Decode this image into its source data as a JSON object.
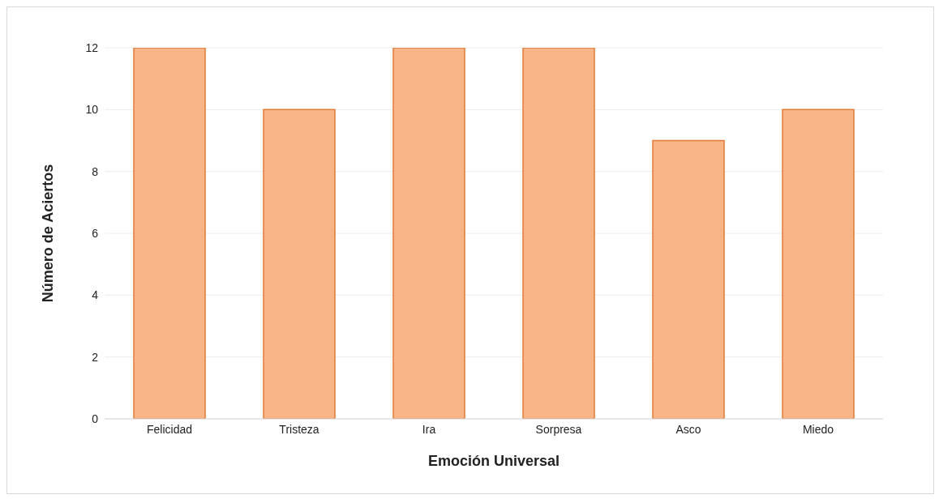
{
  "chart_data": {
    "type": "bar",
    "xlabel": "Emoción Universal",
    "ylabel": "Número de Aciertos",
    "categories": [
      "Felicidad",
      "Tristeza",
      "Ira",
      "Sorpresa",
      "Asco",
      "Miedo"
    ],
    "values": [
      12,
      10,
      12,
      12,
      9,
      10
    ],
    "color": "#f9b487",
    "ylim": [
      0,
      12
    ],
    "yticks": [
      0,
      2,
      4,
      6,
      8,
      10,
      12
    ],
    "grid": "y"
  }
}
